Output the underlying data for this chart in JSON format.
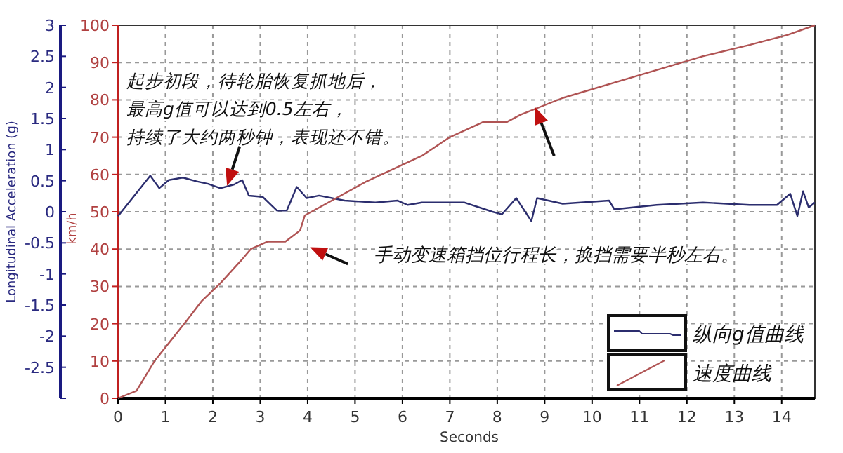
{
  "chart_data": {
    "type": "line",
    "xlabel": "Seconds",
    "ylabel": "Longitudinal Acceleration (g)",
    "y2label": "km/h",
    "xlim": [
      0,
      14.7
    ],
    "xticks": [
      0,
      1,
      2,
      3,
      4,
      5,
      6,
      7,
      8,
      9,
      10,
      11,
      12,
      13,
      14
    ],
    "ylim": [
      -3,
      3
    ],
    "yticks": [
      {
        "value": -3,
        "label": null
      },
      -2.5,
      -2,
      -1.5,
      -1,
      -0.5,
      0,
      0.5,
      1,
      1.5,
      2,
      2.5,
      3
    ],
    "y2lim": [
      0,
      100
    ],
    "y2ticks": [
      0,
      10,
      20,
      30,
      40,
      50,
      60,
      70,
      80,
      90,
      100
    ],
    "grid": true,
    "legend": "bottom right",
    "marker": "none",
    "line_style": "solid",
    "series": [
      {
        "name": "纵向g值曲线",
        "color": "#2b2d6e",
        "x": [
          0,
          0.68,
          0.87,
          1.07,
          1.37,
          1.66,
          1.9,
          2.16,
          2.45,
          2.62,
          2.76,
          3.05,
          3.35,
          3.56,
          3.77,
          3.98,
          4.24,
          4.78,
          5.43,
          5.9,
          6.11,
          6.41,
          6.7,
          7.3,
          7.9,
          8.1,
          8.4,
          8.72,
          8.84,
          9.38,
          10.36,
          10.47,
          11.36,
          12.34,
          13.32,
          13.9,
          14.18,
          14.33,
          14.45,
          14.57,
          14.7
        ],
        "values": [
          -0.07,
          0.58,
          0.38,
          0.51,
          0.55,
          0.49,
          0.45,
          0.38,
          0.44,
          0.51,
          0.26,
          0.24,
          0.02,
          0.02,
          0.4,
          0.22,
          0.26,
          0.18,
          0.15,
          0.18,
          0.11,
          0.15,
          0.15,
          0.15,
          0,
          -0.04,
          0.22,
          -0.15,
          0.22,
          0.13,
          0.18,
          0.04,
          0.11,
          0.15,
          0.11,
          0.11,
          0.29,
          -0.07,
          0.33,
          0.07,
          0.15
        ]
      },
      {
        "name": "速度曲线",
        "color": "#b05454",
        "axis": "y2",
        "x": [
          0,
          0.39,
          0.77,
          1.46,
          1.76,
          2.17,
          2.6,
          2.8,
          3.15,
          3.53,
          3.84,
          3.94,
          5.22,
          6.41,
          7.0,
          7.69,
          8.19,
          8.49,
          9.38,
          11.36,
          12.34,
          13.32,
          14.12,
          14.7
        ],
        "values": [
          0,
          2,
          10,
          21,
          26,
          31,
          37,
          40,
          42,
          42,
          45,
          49,
          58,
          65,
          70,
          74,
          74,
          76,
          80.5,
          88,
          91.7,
          94.7,
          97.4,
          100
        ]
      }
    ],
    "annotations": [
      {
        "text": "起步初段，待轮胎恢复抓地后，最高g值可以达到0.5左右，持续了大约两秒钟，表现还不错。",
        "x": 2.3,
        "y": 0.42
      },
      "手动变速箱挡位行程长，换挡需要半秒左右。"
    ]
  }
}
